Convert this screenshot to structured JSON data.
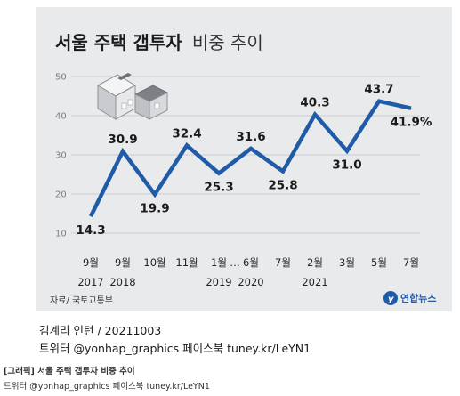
{
  "title_bold": "서울 주택 갭투자",
  "title_light": "비중 추이",
  "source": "자료/ 국토교통부",
  "logo_text": "연합뉴스",
  "credit_line1": "김계리 인턴 / 20211003",
  "credit_line2": "트위터 @yonhap_graphics  페이스북 tuney.kr/LeYN1",
  "caption_line1": "[그래픽] 서울 주택 갭투자 비중 추이",
  "caption_line2": "트위터 @yonhap_graphics  페이스북 tuney.kr/LeYN1",
  "colors": {
    "line": "#1f5ba7",
    "background": "#e9eaec",
    "grid": "#c9ccd1"
  },
  "icon": "house-icon",
  "chart_data": {
    "type": "line",
    "title": "서울 주택 갭투자 비중 추이",
    "ylim": [
      10,
      50
    ],
    "yticks": [
      10,
      20,
      30,
      40,
      50
    ],
    "grid": true,
    "categories": [
      "9월 2017",
      "9월 2018",
      "10월",
      "11월",
      "1월 2019",
      "6월 2020",
      "7월",
      "2월 2021",
      "3월",
      "5월",
      "7월"
    ],
    "month_labels": [
      "9월",
      "9월",
      "10월",
      "11월",
      "1월",
      "6월",
      "7월",
      "2월",
      "3월",
      "5월",
      "7월"
    ],
    "year_labels": [
      "2017",
      "2018",
      "",
      "",
      "2019",
      "2020",
      "",
      "2021",
      "",
      "",
      ""
    ],
    "axis_break": "…",
    "values": [
      14.3,
      30.9,
      19.9,
      32.4,
      25.3,
      31.6,
      25.8,
      40.3,
      31.0,
      43.7,
      41.9
    ],
    "value_labels": [
      "14.3",
      "30.9",
      "19.9",
      "32.4",
      "25.3",
      "31.6",
      "25.8",
      "40.3",
      "31.0",
      "43.7",
      "41.9%"
    ]
  }
}
